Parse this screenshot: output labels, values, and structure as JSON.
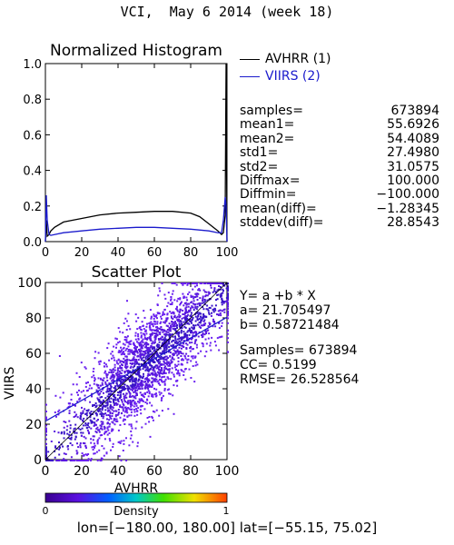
{
  "title": "VCI,  May 6 2014 (week 18)",
  "histogram": {
    "title": "Normalized Histogram",
    "legend": [
      {
        "label": "AVHRR (1)",
        "color": "#000000"
      },
      {
        "label": "VIIRS (2)",
        "color": "#1a1acc"
      }
    ]
  },
  "stats": [
    {
      "label": "samples=",
      "value": "673894"
    },
    {
      "label": "mean1=",
      "value": "55.6926"
    },
    {
      "label": "mean2=",
      "value": "54.4089"
    },
    {
      "label": "std1=",
      "value": "27.4980"
    },
    {
      "label": "std2=",
      "value": "31.0575"
    },
    {
      "label": "Diffmax=",
      "value": "100.000"
    },
    {
      "label": "Diffmin=",
      "value": "−100.000"
    },
    {
      "label": "mean(diff)=",
      "value": "−1.28345"
    },
    {
      "label": "stddev(diff)=",
      "value": "28.8543"
    }
  ],
  "regression": {
    "equation": "Y= a +b * X",
    "a": "a= 21.705497",
    "b": "b= 0.58721484",
    "samples": "Samples= 673894",
    "cc": "CC=  0.5199",
    "rmse": "RMSE= 26.528564"
  },
  "scatter": {
    "title": "Scatter Plot",
    "xlabel": "AVHRR",
    "ylabel": "VIIRS"
  },
  "colorbar": {
    "label": "Density",
    "min_label": "0",
    "max_label": "1"
  },
  "ranges": "lon=[−180.00, 180.00] lat=[−55.15, 75.02]",
  "chart_data": [
    {
      "type": "line",
      "title": "Normalized Histogram",
      "xlim": [
        0,
        100
      ],
      "ylim": [
        0,
        1
      ],
      "xticks": [
        "0",
        "20",
        "40",
        "60",
        "80",
        "100"
      ],
      "yticks": [
        "0.0",
        "0.2",
        "0.4",
        "0.6",
        "0.8",
        "1.0"
      ],
      "series": [
        {
          "name": "AVHRR (1)",
          "color": "#000000",
          "x": [
            0,
            0.5,
            1,
            2,
            3,
            5,
            10,
            20,
            30,
            40,
            50,
            60,
            70,
            80,
            85,
            90,
            95,
            97,
            98,
            99,
            99.5,
            100
          ],
          "y": [
            0.0,
            0.12,
            0.03,
            0.04,
            0.06,
            0.08,
            0.11,
            0.13,
            0.15,
            0.16,
            0.165,
            0.17,
            0.17,
            0.16,
            0.14,
            0.1,
            0.06,
            0.04,
            0.05,
            0.15,
            1.0,
            0.0
          ]
        },
        {
          "name": "VIIRS (2)",
          "color": "#1a1acc",
          "x": [
            0,
            0.5,
            1,
            2,
            3,
            5,
            10,
            20,
            30,
            40,
            50,
            60,
            70,
            80,
            90,
            95,
            97,
            98,
            99,
            99.5,
            100
          ],
          "y": [
            0.0,
            0.26,
            0.12,
            0.04,
            0.035,
            0.04,
            0.05,
            0.06,
            0.07,
            0.075,
            0.08,
            0.08,
            0.075,
            0.07,
            0.06,
            0.05,
            0.05,
            0.12,
            0.25,
            0.2,
            0.0
          ]
        }
      ]
    },
    {
      "type": "scatter",
      "title": "Scatter Plot",
      "xlabel": "AVHRR",
      "ylabel": "VIIRS",
      "xlim": [
        0,
        100
      ],
      "ylim": [
        0,
        100
      ],
      "xticks": [
        "0",
        "20",
        "40",
        "60",
        "80",
        "100"
      ],
      "yticks": [
        "0",
        "20",
        "40",
        "60",
        "80",
        "100"
      ],
      "n_samples": 673894,
      "fit": {
        "a": 21.705497,
        "b": 0.58721484
      },
      "colormap": "density",
      "colorbar_range": [
        0,
        1
      ]
    }
  ]
}
